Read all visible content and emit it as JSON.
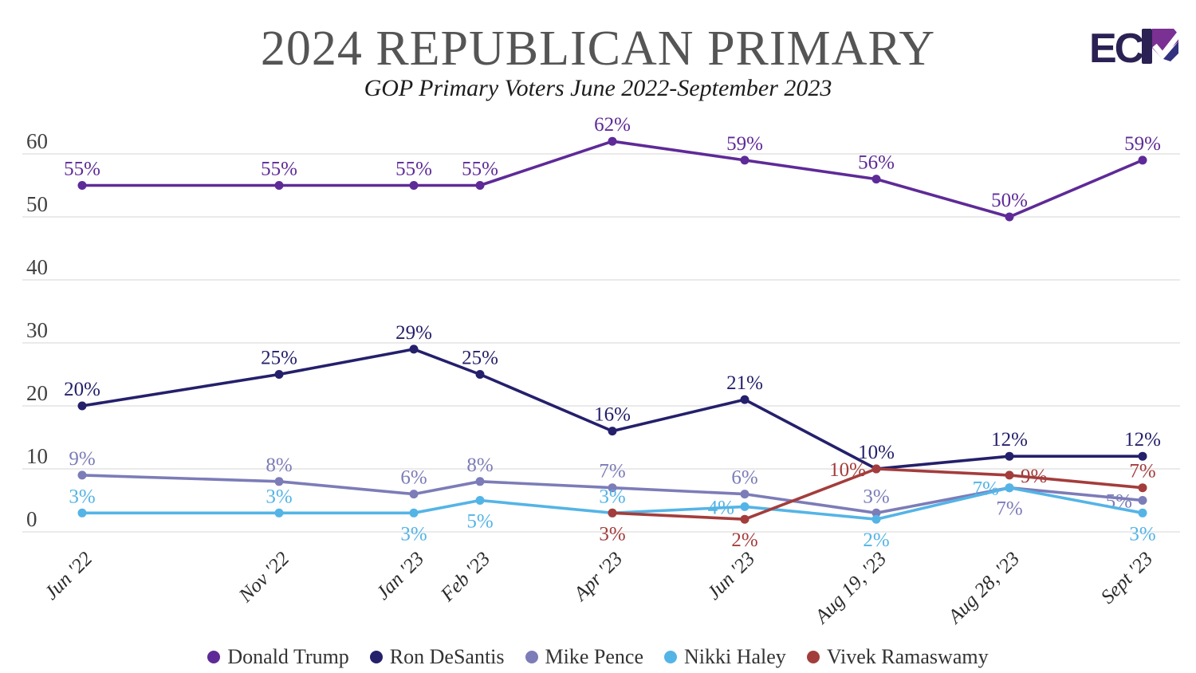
{
  "header": {
    "title": "2024 REPUBLICAN PRIMARY",
    "subtitle": "GOP Primary Voters June 2022-September 2023"
  },
  "logo": {
    "brand": "ECP",
    "text_part": "EC"
  },
  "colors": {
    "trump": "#5e2a97",
    "desantis": "#24206b",
    "pence": "#7c7cb8",
    "haley": "#54b4e6",
    "ramaswamy": "#a33d3c",
    "gridline": "#dddddd",
    "axis_text": "#404040",
    "x_label_text": "#2a2a2a",
    "title_text": "#555555"
  },
  "chart_data": {
    "type": "line",
    "title": "2024 Republican Primary",
    "subtitle": "GOP Primary Voters June 2022-September 2023",
    "categories": [
      "Jun '22",
      "Nov '22",
      "Jan '23",
      "Feb '23",
      "Apr '23",
      "Jun '23",
      "Aug 19, '23",
      "Aug 28, '23",
      "Sept '23"
    ],
    "series": [
      {
        "name": "Donald Trump",
        "color": "#5e2a97",
        "values": [
          55,
          55,
          55,
          55,
          62,
          59,
          56,
          50,
          59
        ],
        "label_positions": [
          "a",
          "a",
          "a",
          "a",
          "a",
          "a",
          "a",
          "a",
          "a"
        ]
      },
      {
        "name": "Ron DeSantis",
        "color": "#24206b",
        "values": [
          20,
          25,
          29,
          25,
          16,
          21,
          10,
          12,
          12
        ],
        "label_positions": [
          "a",
          "a",
          "a",
          "a",
          "a",
          "a",
          "a",
          "a",
          "a"
        ]
      },
      {
        "name": "Mike Pence",
        "color": "#7c7cb8",
        "values": [
          9,
          8,
          6,
          8,
          7,
          6,
          3,
          7,
          5
        ],
        "label_positions": [
          "a",
          "a",
          "a",
          "a",
          "a",
          "a",
          "a",
          "b",
          "l"
        ]
      },
      {
        "name": "Nikki Haley",
        "color": "#54b4e6",
        "values": [
          3,
          3,
          3,
          5,
          3,
          4,
          2,
          7,
          3
        ],
        "label_positions": [
          "a",
          "a",
          "b",
          "b",
          "a",
          "l",
          "b",
          "l",
          "b"
        ]
      },
      {
        "name": "Vivek Ramaswamy",
        "color": "#a33d3c",
        "values": [
          null,
          null,
          null,
          null,
          3,
          2,
          10,
          9,
          7
        ],
        "label_positions": [
          null,
          null,
          null,
          null,
          "b",
          "b",
          "l",
          "r",
          "a"
        ]
      }
    ],
    "label_suffix": "%",
    "yticks": [
      0,
      10,
      20,
      30,
      40,
      50,
      60
    ],
    "ylim": [
      0,
      66
    ],
    "grid": "horizontal",
    "legend_position": "bottom"
  }
}
